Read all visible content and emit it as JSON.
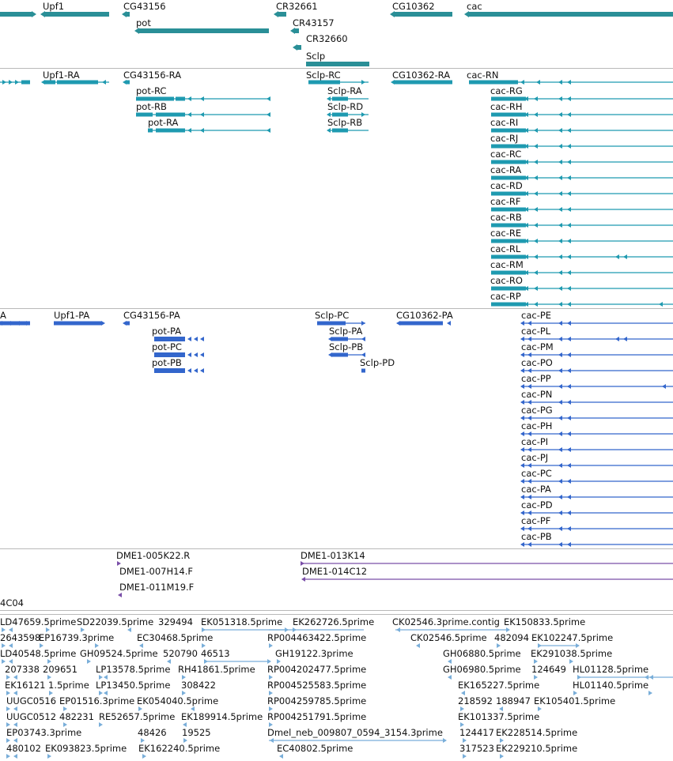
{
  "colors": {
    "gene": "#2a8f97",
    "transcript": "#1f9ab0",
    "protein": "#3366cc",
    "clone": "#7a4fa8",
    "est": "#79aed9",
    "separator": "#b9b9b9"
  },
  "genes": [
    "Upf1",
    "CG43156",
    "pot",
    "CR32661",
    "CR43157",
    "CR32660",
    "Sclp",
    "CG10362",
    "cac"
  ],
  "transcripts": {
    "main": [
      "Upf1-RA",
      "CG43156-RA",
      "Sclp-RC",
      "CG10362-RA",
      "cac-RN"
    ],
    "pot": [
      "pot-RC",
      "pot-RB",
      "pot-RA"
    ],
    "sclp": [
      "Sclp-RA",
      "Sclp-RD",
      "Sclp-RB"
    ],
    "cac": [
      "cac-RG",
      "cac-RH",
      "cac-RI",
      "cac-RJ",
      "cac-RC",
      "cac-RA",
      "cac-RD",
      "cac-RF",
      "cac-RB",
      "cac-RE",
      "cac-RL",
      "cac-RM",
      "cac-RO",
      "cac-RP"
    ]
  },
  "proteins": {
    "main": [
      "A",
      "Upf1-PA",
      "CG43156-PA",
      "Sclp-PC",
      "CG10362-PA",
      "cac-PE"
    ],
    "pot": [
      "pot-PA",
      "pot-PC",
      "pot-PB"
    ],
    "sclp": [
      "Sclp-PA",
      "Sclp-PB",
      "Sclp-PD"
    ],
    "cac": [
      "cac-PL",
      "cac-PM",
      "cac-PO",
      "cac-PP",
      "cac-PN",
      "cac-PG",
      "cac-PH",
      "cac-PI",
      "cac-PJ",
      "cac-PC",
      "cac-PA",
      "cac-PD",
      "cac-PF",
      "cac-PB"
    ]
  },
  "clones": [
    "DME1-005K22.R",
    "DME1-013K14",
    "DME1-007H14.F",
    "DME1-014C12",
    "DME1-011M19.F",
    "4C04"
  ],
  "ests": [
    [
      "LD47659.5prime",
      "SD22039.5prime",
      "329494",
      "EK051318.5prime",
      "EK262726.5prime",
      "CK02546.3prime.contig",
      "EK150833.5prime"
    ],
    [
      "2643598",
      "EP16739.3prime",
      "EC30468.5prime",
      "RP004463422.5prime",
      "CK02546.5prime",
      "482094",
      "EK102247.5prime"
    ],
    [
      "LD40548.5prime",
      "GH09524.5prime",
      "520790",
      "46513",
      "GH19122.3prime",
      "GH06880.5prime",
      "EK291038.5prime"
    ],
    [
      "207338",
      "209651",
      "LP13578.5prime",
      "RH41861.5prime",
      "RP004202477.5prime",
      "GH06980.5prime",
      "124649",
      "HL01128.5prime"
    ],
    [
      "EK16121",
      "1.5prime",
      "LP13450.5prime",
      "308422",
      "RP004525583.5prime",
      "EK165227.5prime",
      "HL01140.5prime"
    ],
    [
      "UUGC0516",
      "EP01516.3prime",
      "EK054040.5prime",
      "RP004259785.5prime",
      "218592",
      "188947",
      "EK105401.5prime"
    ],
    [
      "UUGC0512",
      "482231",
      "RE52657.5prime",
      "EK189914.5prime",
      "RP004251791.5prime",
      "EK101337.5prime"
    ],
    [
      "EP03743.3prime",
      "48426",
      "19525",
      "Dmel_neb_009807_0594_3154.3prime",
      "124417",
      "EK228514.5prime"
    ],
    [
      "480102",
      "EK093823.5prime",
      "EK162240.5prime",
      "EC40802.5prime",
      "317523",
      "EK229210.5prime"
    ]
  ]
}
